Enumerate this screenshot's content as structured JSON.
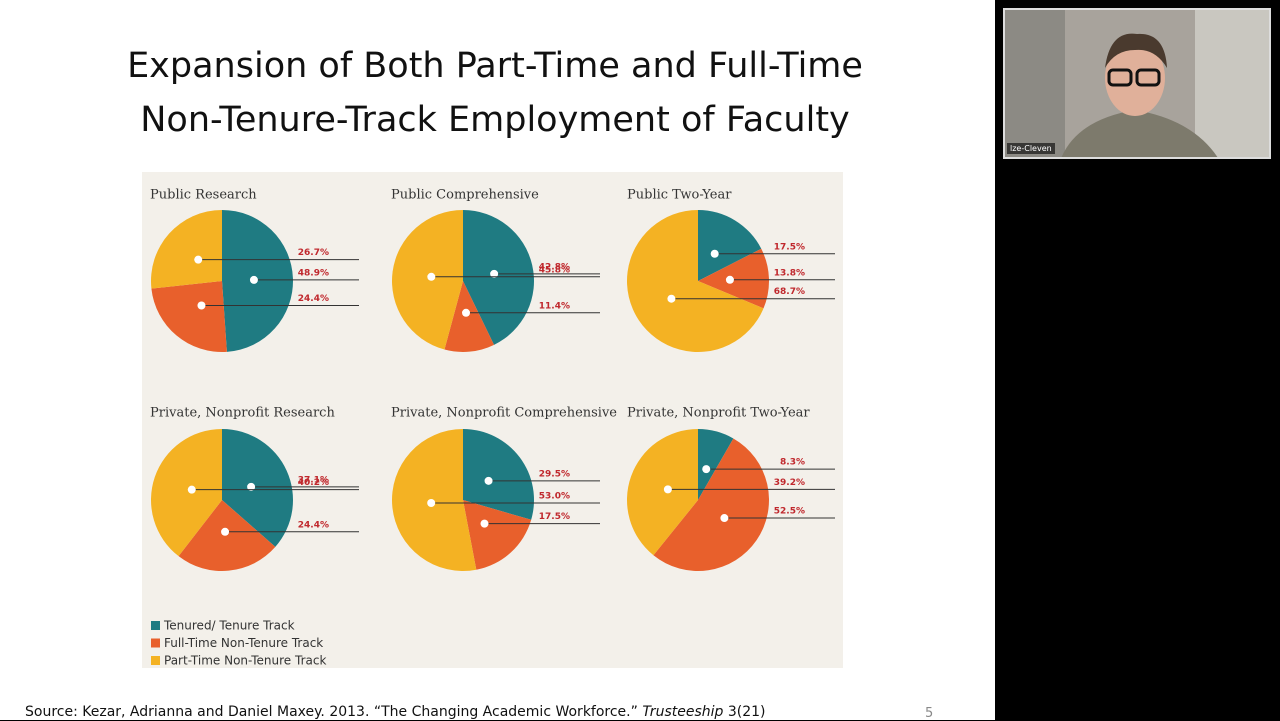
{
  "slide": {
    "title_lines": [
      "Expansion of Both Part-Time and Full-Time",
      "Non-Tenure-Track Employment of Faculty"
    ],
    "source": {
      "text": "Source: Kezar, Adrianna and Daniel Maxey. 2013. “The Changing Academic Workforce.”",
      "journal": "Trusteeship",
      "issue": "3(21)"
    },
    "page_number": "5"
  },
  "legend": {
    "items": [
      {
        "name": "Tenured/ Tenure Track",
        "color": "#1f7b82"
      },
      {
        "name": "Full-Time Non-Tenure Track",
        "color": "#e8602c"
      },
      {
        "name": "Part-Time Non-Tenure Track",
        "color": "#f4b223"
      }
    ]
  },
  "chart_data": [
    {
      "type": "pie",
      "title": "Public Research",
      "values": [
        48.9,
        24.4,
        26.7
      ],
      "value_labels": [
        "48.9%",
        "24.4%",
        "26.7%"
      ]
    },
    {
      "type": "pie",
      "title": "Public Comprehensive",
      "values": [
        42.8,
        11.4,
        45.8
      ],
      "value_labels": [
        "42.8%",
        "11.4%",
        "45.8%"
      ]
    },
    {
      "type": "pie",
      "title": "Public Two-Year",
      "values": [
        17.5,
        13.8,
        68.7
      ],
      "value_labels": [
        "17.5%",
        "13.8%",
        "68.7%"
      ]
    },
    {
      "type": "pie",
      "title": "Private, Nonprofit Research",
      "values": [
        37.1,
        24.4,
        40.2
      ],
      "value_labels": [
        "37.1%",
        "24.4%",
        "40.2%"
      ]
    },
    {
      "type": "pie",
      "title": "Private, Nonprofit Comprehensive",
      "values": [
        29.5,
        17.5,
        53.0
      ],
      "value_labels": [
        "29.5%",
        "17.5%",
        "53.0%"
      ]
    },
    {
      "type": "pie",
      "title": "Private, Nonprofit Two-Year",
      "values": [
        8.3,
        52.5,
        39.2
      ],
      "value_labels": [
        "8.3%",
        "52.5%",
        "39.2%"
      ]
    }
  ],
  "video": {
    "participant_name": "lze-Cleven"
  }
}
